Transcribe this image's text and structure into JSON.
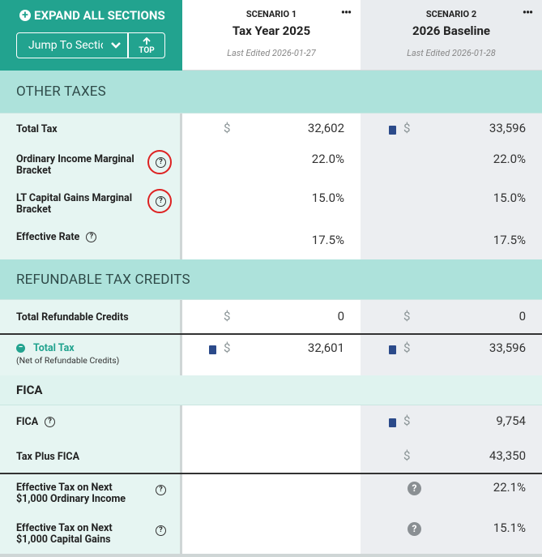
{
  "header": {
    "expand_all": "EXPAND ALL SECTIONS",
    "jump_to": "Jump To Section",
    "top": "TOP",
    "scenarios": [
      {
        "label": "SCENARIO 1",
        "name": "Tax Year 2025",
        "edited": "Last Edited 2026-01-27"
      },
      {
        "label": "SCENARIO 2",
        "name": "2026 Baseline",
        "edited": "Last Edited 2026-01-28"
      }
    ]
  },
  "sections": [
    {
      "title": "OTHER TAXES",
      "rows": [
        {
          "label": "Total Tax",
          "values": [
            {
              "currency": "$",
              "amount": "32,602"
            },
            {
              "currency": "$",
              "amount": "33,596"
            }
          ]
        },
        {
          "label": "Ordinary Income Marginal Bracket",
          "values": [
            {
              "amount": "22.0%"
            },
            {
              "amount": "22.0%"
            }
          ]
        },
        {
          "label": "LT Capital Gains Marginal Bracket",
          "values": [
            {
              "amount": "15.0%"
            },
            {
              "amount": "15.0%"
            }
          ]
        },
        {
          "label": "Effective Rate",
          "values": [
            {
              "amount": "17.5%"
            },
            {
              "amount": "17.5%"
            }
          ]
        }
      ]
    },
    {
      "title": "REFUNDABLE TAX CREDITS",
      "rows": [
        {
          "label": "Total Refundable Credits",
          "values": [
            {
              "currency": "$",
              "amount": "0"
            },
            {
              "currency": "$",
              "amount": "0"
            }
          ]
        },
        {
          "label": "Total Tax",
          "sublabel": "(Net of Refundable Credits)",
          "values": [
            {
              "currency": "$",
              "amount": "32,601"
            },
            {
              "currency": "$",
              "amount": "33,596"
            }
          ]
        }
      ]
    },
    {
      "title": "FICA",
      "rows": [
        {
          "label": "FICA",
          "values": [
            null,
            {
              "currency": "$",
              "amount": "9,754"
            }
          ]
        },
        {
          "label": "Tax Plus FICA",
          "values": [
            null,
            {
              "currency": "$",
              "amount": "43,350"
            }
          ]
        },
        {
          "label": "Effective Tax on Next $1,000 Ordinary Income",
          "values": [
            null,
            {
              "amount": "22.1%"
            }
          ]
        },
        {
          "label": "Effective Tax on Next $1,000 Capital Gains",
          "values": [
            null,
            {
              "amount": "15.1%"
            }
          ]
        }
      ]
    }
  ]
}
